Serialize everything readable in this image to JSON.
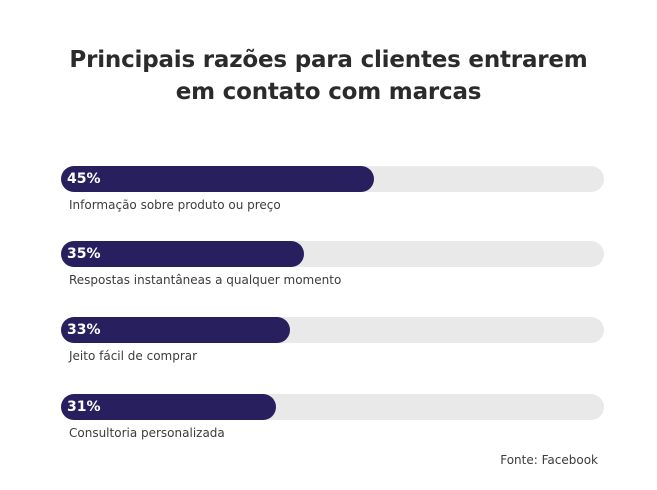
{
  "chart_data": {
    "type": "bar",
    "orientation": "horizontal",
    "title_lines": [
      "Principais razões para clientes entrarem",
      "em contato com marcas"
    ],
    "categories": [
      "Informação sobre produto ou preço",
      "Respostas instantâneas a qualquer momento",
      "Jeito fácil de comprar",
      "Consultoria personalizada"
    ],
    "values": [
      45,
      35,
      33,
      31
    ],
    "value_labels": [
      "45%",
      "35%",
      "33%",
      "31%"
    ],
    "xlim": [
      0,
      100
    ],
    "unit": "%",
    "grid": false,
    "bar_color": "#28205e",
    "track_color": "#e9e9e9"
  },
  "source": "Fonte: Facebook"
}
